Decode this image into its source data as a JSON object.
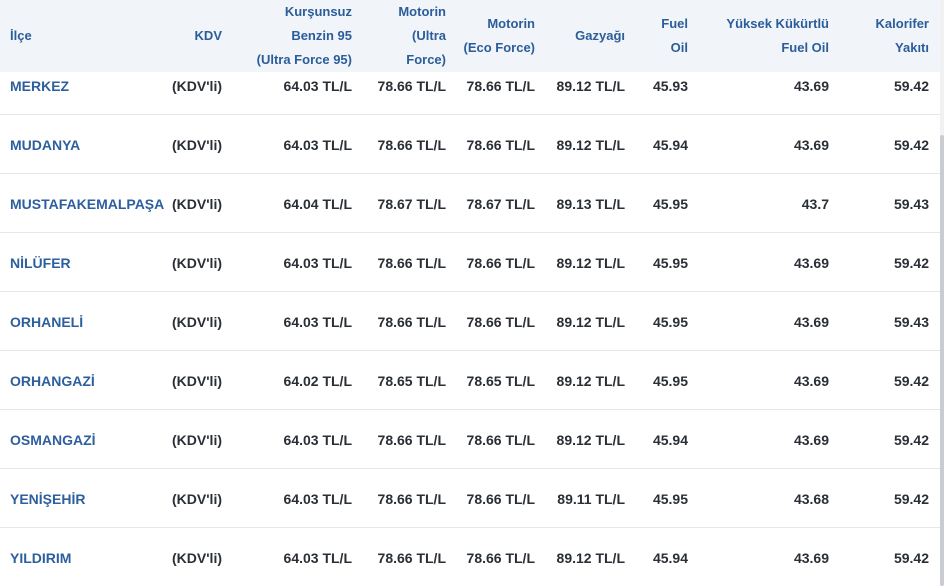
{
  "table": {
    "headers": {
      "ilce": [
        "İlçe"
      ],
      "kdv": [
        "KDV"
      ],
      "benzin": [
        "Kurşunsuz",
        "Benzin 95",
        "(Ultra Force 95)"
      ],
      "motorin_ultra": [
        "Motorin",
        "(Ultra",
        "Force)"
      ],
      "motorin_eco": [
        "Motorin",
        "(Eco Force)"
      ],
      "gazyagi": [
        "Gazyağı"
      ],
      "fuel_oil": [
        "Fuel",
        "Oil"
      ],
      "yuksek": [
        "Yüksek Kükürtlü",
        "Fuel Oil"
      ],
      "kalorifer": [
        "Kalorifer",
        "Yakıtı"
      ]
    },
    "rows": [
      {
        "ilce": "MERKEZ",
        "kdv": "(KDV'li)",
        "benzin": "64.03 TL/L",
        "motorin_ultra": "78.66 TL/L",
        "motorin_eco": "78.66 TL/L",
        "gazyagi": "89.12 TL/L",
        "fuel_oil": "45.93",
        "yuksek": "43.69",
        "kalorifer": "59.42"
      },
      {
        "ilce": "MUDANYA",
        "kdv": "(KDV'li)",
        "benzin": "64.03 TL/L",
        "motorin_ultra": "78.66 TL/L",
        "motorin_eco": "78.66 TL/L",
        "gazyagi": "89.12 TL/L",
        "fuel_oil": "45.94",
        "yuksek": "43.69",
        "kalorifer": "59.42"
      },
      {
        "ilce": "MUSTAFAKEMALPAŞA",
        "kdv": "(KDV'li)",
        "benzin": "64.04 TL/L",
        "motorin_ultra": "78.67 TL/L",
        "motorin_eco": "78.67 TL/L",
        "gazyagi": "89.13 TL/L",
        "fuel_oil": "45.95",
        "yuksek": "43.7",
        "kalorifer": "59.43"
      },
      {
        "ilce": "NİLÜFER",
        "kdv": "(KDV'li)",
        "benzin": "64.03 TL/L",
        "motorin_ultra": "78.66 TL/L",
        "motorin_eco": "78.66 TL/L",
        "gazyagi": "89.12 TL/L",
        "fuel_oil": "45.95",
        "yuksek": "43.69",
        "kalorifer": "59.42"
      },
      {
        "ilce": "ORHANELİ",
        "kdv": "(KDV'li)",
        "benzin": "64.03 TL/L",
        "motorin_ultra": "78.66 TL/L",
        "motorin_eco": "78.66 TL/L",
        "gazyagi": "89.12 TL/L",
        "fuel_oil": "45.95",
        "yuksek": "43.69",
        "kalorifer": "59.43"
      },
      {
        "ilce": "ORHANGAZİ",
        "kdv": "(KDV'li)",
        "benzin": "64.02 TL/L",
        "motorin_ultra": "78.65 TL/L",
        "motorin_eco": "78.65 TL/L",
        "gazyagi": "89.12 TL/L",
        "fuel_oil": "45.95",
        "yuksek": "43.69",
        "kalorifer": "59.42"
      },
      {
        "ilce": "OSMANGAZİ",
        "kdv": "(KDV'li)",
        "benzin": "64.03 TL/L",
        "motorin_ultra": "78.66 TL/L",
        "motorin_eco": "78.66 TL/L",
        "gazyagi": "89.12 TL/L",
        "fuel_oil": "45.94",
        "yuksek": "43.69",
        "kalorifer": "59.42"
      },
      {
        "ilce": "YENİŞEHİR",
        "kdv": "(KDV'li)",
        "benzin": "64.03 TL/L",
        "motorin_ultra": "78.66 TL/L",
        "motorin_eco": "78.66 TL/L",
        "gazyagi": "89.11 TL/L",
        "fuel_oil": "45.95",
        "yuksek": "43.68",
        "kalorifer": "59.42"
      },
      {
        "ilce": "YILDIRIM",
        "kdv": "(KDV'li)",
        "benzin": "64.03 TL/L",
        "motorin_ultra": "78.66 TL/L",
        "motorin_eco": "78.66 TL/L",
        "gazyagi": "89.12 TL/L",
        "fuel_oil": "45.94",
        "yuksek": "43.69",
        "kalorifer": "59.42"
      }
    ]
  }
}
